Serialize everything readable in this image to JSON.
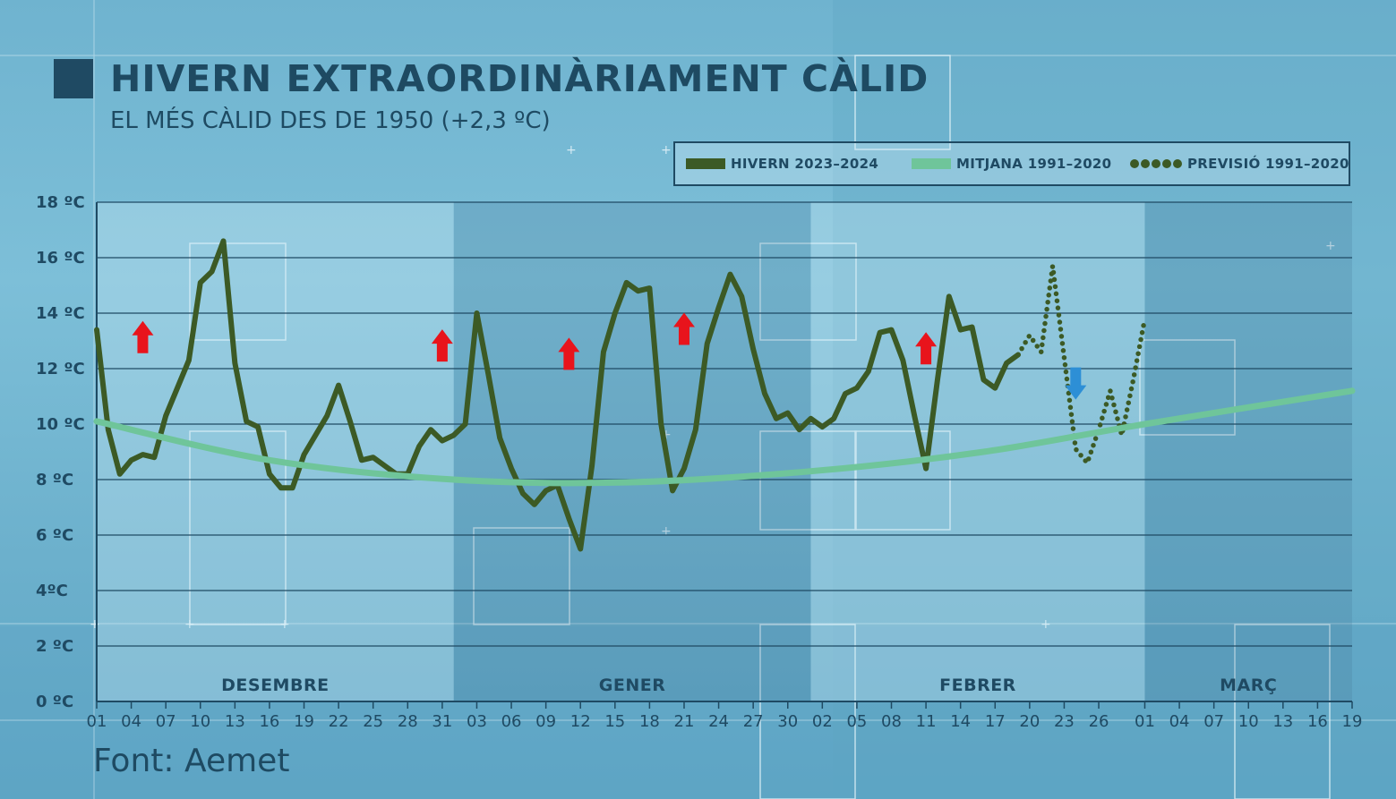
{
  "header": {
    "title": "HIVERN EXTRAORDINÀRIAMENT CÀLID",
    "subtitle": "EL MÉS CÀLID DES DE 1950 (+2,3 ºC)"
  },
  "legend": {
    "items": [
      "HIVERN 2023–2024",
      "MITJANA 1991–2020",
      "PREVISIÓ 1991–2020"
    ]
  },
  "footer": {
    "source": "Font: Aemet"
  },
  "colors": {
    "history": "#3c5a25",
    "mean": "#6fc59a",
    "arrow_up": "#e8141c",
    "arrow_down": "#2d8fd6",
    "text": "#1f4a63"
  },
  "chart_data": {
    "type": "line",
    "title": "HIVERN EXTRAORDINÀRIAMENT CÀLID",
    "subtitle": "EL MÉS CÀLID DES DE 1950 (+2,3 ºC)",
    "x_start": "2023-12-01",
    "x_end": "2024-03-19",
    "ylim": [
      0,
      18
    ],
    "y_ticks": [
      0,
      2,
      4,
      6,
      8,
      10,
      12,
      14,
      16,
      18
    ],
    "y_tick_labels": [
      "0 ºC",
      "2 ºC",
      "4ºC",
      "6 ºC",
      "8 ºC",
      "10 ºC",
      "12 ºC",
      "14 ºC",
      "16 ºC",
      "18 ºC"
    ],
    "x_ticks": [
      "2023-12-01",
      "2023-12-04",
      "2023-12-07",
      "2023-12-10",
      "2023-12-13",
      "2023-12-16",
      "2023-12-19",
      "2023-12-22",
      "2023-12-25",
      "2023-12-28",
      "2023-12-31",
      "2024-01-03",
      "2024-01-06",
      "2024-01-09",
      "2024-01-12",
      "2024-01-15",
      "2024-01-18",
      "2024-01-21",
      "2024-01-24",
      "2024-01-27",
      "2024-01-30",
      "2024-02-02",
      "2024-02-05",
      "2024-02-08",
      "2024-02-11",
      "2024-02-14",
      "2024-02-17",
      "2024-02-20",
      "2024-02-23",
      "2024-02-26",
      "2024-03-01",
      "2024-03-04",
      "2024-03-07",
      "2024-03-10",
      "2024-03-13",
      "2024-03-16",
      "2024-03-19"
    ],
    "x_tick_labels": [
      "01",
      "04",
      "07",
      "10",
      "13",
      "16",
      "19",
      "22",
      "25",
      "28",
      "31",
      "03",
      "06",
      "09",
      "12",
      "15",
      "18",
      "21",
      "24",
      "27",
      "30",
      "02",
      "05",
      "08",
      "11",
      "14",
      "17",
      "20",
      "23",
      "26",
      "01",
      "04",
      "07",
      "10",
      "13",
      "16",
      "19"
    ],
    "months": [
      {
        "label": "DESEMBRE",
        "start": "2023-12-01",
        "end": "2024-01-01"
      },
      {
        "label": "GENER",
        "start": "2024-01-01",
        "end": "2024-02-01"
      },
      {
        "label": "FEBRER",
        "start": "2024-02-01",
        "end": "2024-03-01"
      },
      {
        "label": "MARÇ",
        "start": "2024-03-01",
        "end": "2024-03-19"
      }
    ],
    "grid": true,
    "legend_position": "top-right",
    "series": [
      {
        "name": "HIVERN 2023–2024",
        "style": "solid",
        "x": [
          "2023-12-01",
          "2023-12-02",
          "2023-12-03",
          "2023-12-04",
          "2023-12-05",
          "2023-12-06",
          "2023-12-07",
          "2023-12-08",
          "2023-12-09",
          "2023-12-10",
          "2023-12-11",
          "2023-12-12",
          "2023-12-13",
          "2023-12-14",
          "2023-12-15",
          "2023-12-16",
          "2023-12-17",
          "2023-12-18",
          "2023-12-19",
          "2023-12-20",
          "2023-12-21",
          "2023-12-22",
          "2023-12-23",
          "2023-12-24",
          "2023-12-25",
          "2023-12-26",
          "2023-12-27",
          "2023-12-28",
          "2023-12-29",
          "2023-12-30",
          "2023-12-31",
          "2024-01-01",
          "2024-01-02",
          "2024-01-03",
          "2024-01-04",
          "2024-01-05",
          "2024-01-06",
          "2024-01-07",
          "2024-01-08",
          "2024-01-09",
          "2024-01-10",
          "2024-01-11",
          "2024-01-12",
          "2024-01-13",
          "2024-01-14",
          "2024-01-15",
          "2024-01-16",
          "2024-01-17",
          "2024-01-18",
          "2024-01-19",
          "2024-01-20",
          "2024-01-21",
          "2024-01-22",
          "2024-01-23",
          "2024-01-24",
          "2024-01-25",
          "2024-01-26",
          "2024-01-27",
          "2024-01-28",
          "2024-01-29",
          "2024-01-30",
          "2024-01-31",
          "2024-02-01",
          "2024-02-02",
          "2024-02-03",
          "2024-02-04",
          "2024-02-05",
          "2024-02-06",
          "2024-02-07",
          "2024-02-08",
          "2024-02-09",
          "2024-02-10",
          "2024-02-11",
          "2024-02-12",
          "2024-02-13",
          "2024-02-14",
          "2024-02-15",
          "2024-02-16",
          "2024-02-17",
          "2024-02-18",
          "2024-02-19"
        ],
        "values": [
          13.4,
          9.8,
          8.2,
          8.7,
          8.9,
          8.8,
          10.3,
          11.3,
          12.3,
          15.1,
          15.5,
          16.6,
          12.2,
          10.1,
          9.9,
          8.2,
          7.7,
          7.7,
          8.9,
          9.6,
          10.3,
          11.4,
          10.1,
          8.7,
          8.8,
          8.5,
          8.2,
          8.2,
          9.2,
          9.8,
          9.4,
          9.6,
          10.0,
          14.0,
          11.8,
          9.5,
          8.4,
          7.5,
          7.1,
          7.6,
          7.8,
          6.6,
          5.5,
          8.5,
          12.6,
          14.0,
          15.1,
          14.8,
          14.9,
          10.0,
          7.6,
          8.4,
          9.8,
          12.9,
          14.2,
          15.4,
          14.6,
          12.7,
          11.1,
          10.2,
          10.4,
          9.8,
          10.2,
          9.9,
          10.2,
          11.1,
          11.3,
          11.9,
          13.3,
          13.4,
          12.3,
          10.3,
          8.4,
          11.6,
          14.6,
          13.4,
          13.5,
          11.6,
          11.3,
          12.2,
          12.5
        ]
      },
      {
        "name": "PREVISIÓ 1991–2020",
        "style": "dotted",
        "x": [
          "2024-02-19",
          "2024-02-20",
          "2024-02-21",
          "2024-02-22",
          "2024-02-23",
          "2024-02-24",
          "2024-02-25",
          "2024-02-26",
          "2024-02-27",
          "2024-02-28",
          "2024-02-29",
          "2024-03-01"
        ],
        "values": [
          12.5,
          13.2,
          12.6,
          15.7,
          12.4,
          9.1,
          8.6,
          9.8,
          11.2,
          9.6,
          11.6,
          13.8
        ]
      },
      {
        "name": "MITJANA 1991–2020",
        "style": "smooth",
        "x": [
          "2023-12-01",
          "2023-12-16",
          "2024-01-01",
          "2024-01-16",
          "2024-02-01",
          "2024-02-16",
          "2024-03-01",
          "2024-03-19"
        ],
        "values": [
          10.1,
          8.7,
          8.0,
          7.9,
          8.3,
          9.0,
          10.0,
          11.2
        ]
      }
    ],
    "annotations": [
      {
        "type": "arrow-up",
        "x": "2023-12-05",
        "y": 13.2
      },
      {
        "type": "arrow-up",
        "x": "2023-12-31",
        "y": 12.9
      },
      {
        "type": "arrow-up",
        "x": "2024-01-11",
        "y": 12.6
      },
      {
        "type": "arrow-up",
        "x": "2024-01-21",
        "y": 13.5
      },
      {
        "type": "arrow-up",
        "x": "2024-02-11",
        "y": 12.8
      },
      {
        "type": "arrow-down",
        "x": "2024-02-24",
        "y": 11.4
      }
    ]
  }
}
